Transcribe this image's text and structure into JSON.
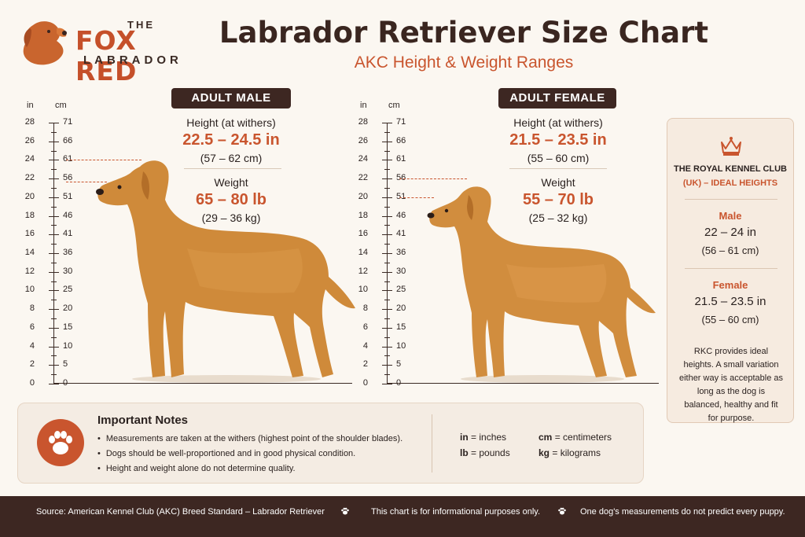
{
  "logo": {
    "the": "THE",
    "brand": "FOX RED",
    "sub": "LABRADOR"
  },
  "header": {
    "title": "Labrador Retriever Size Chart",
    "subtitle": "AKC Height & Weight Ranges"
  },
  "ruler": {
    "inch_unit": "in",
    "cm_unit": "cm",
    "inches": [
      "28",
      "26",
      "24",
      "22",
      "20",
      "18",
      "16",
      "14",
      "12",
      "10",
      "8",
      "6",
      "4",
      "2",
      "0"
    ],
    "cms": [
      "71",
      "66",
      "61",
      "56",
      "51",
      "46",
      "41",
      "36",
      "30",
      "25",
      "20",
      "15",
      "10",
      "5",
      "0"
    ]
  },
  "male": {
    "tag": "ADULT MALE",
    "height_label": "Height (at withers)",
    "height_value": "22.5 – 24.5 in",
    "height_metric": "(57 – 62 cm)",
    "weight_label": "Weight",
    "weight_value": "65 – 80 lb",
    "weight_metric": "(29 – 36 kg)"
  },
  "female": {
    "tag": "ADULT FEMALE",
    "height_label": "Height (at withers)",
    "height_value": "21.5 – 23.5 in",
    "height_metric": "(55 – 60 cm)",
    "weight_label": "Weight",
    "weight_value": "55 – 70 lb",
    "weight_metric": "(25 – 32 kg)"
  },
  "rkc": {
    "name": "THE ROYAL KENNEL CLUB",
    "sub": "(UK) – IDEAL HEIGHTS",
    "male_label": "Male",
    "male_in": "22 – 24 in",
    "male_cm": "(56 – 61 cm)",
    "female_label": "Female",
    "female_in": "21.5 – 23.5 in",
    "female_cm": "(55 – 60 cm)",
    "note": "RKC provides ideal heights. A small variation either way is acceptable as long as the dog is balanced, healthy and fit for purpose."
  },
  "notes": {
    "title": "Important Notes",
    "items": [
      "Measurements are taken at the withers (highest point of the shoulder blades).",
      "Dogs should be well-proportioned and in good physical condition.",
      "Height and weight alone do not determine quality."
    ],
    "legend": {
      "in_abbr": "in",
      "in_text": "= inches",
      "cm_abbr": "cm",
      "cm_text": "= centimeters",
      "lb_abbr": "lb",
      "lb_text": "= pounds",
      "kg_abbr": "kg",
      "kg_text": "= kilograms"
    }
  },
  "footer": {
    "source": "Source: American Kennel Club (AKC) Breed Standard – Labrador Retriever",
    "info": "This chart is for informational purposes only.",
    "puppy": "One dog's measurements do not predict every puppy."
  },
  "colors": {
    "accent": "#c9552e",
    "dark": "#3d2722",
    "background": "#fbf7f1",
    "dog": "#cf8a3a"
  },
  "icons": [
    "labrador-head-icon",
    "crown-icon",
    "paw-icon"
  ]
}
